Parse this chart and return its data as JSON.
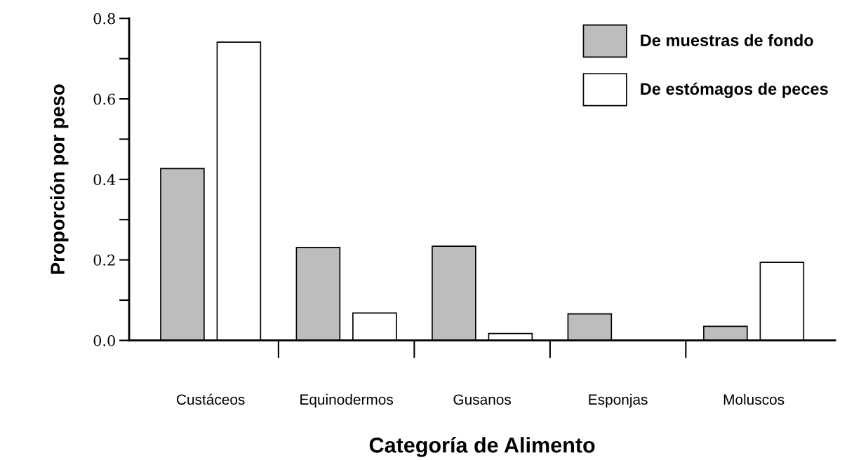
{
  "chart_data": {
    "type": "bar",
    "xlabel": "Categoría de Alimento",
    "ylabel": "Proporción por peso",
    "categories": [
      "Custáceos",
      "Equinodermos",
      "Gusanos",
      "Esponjas",
      "Moluscos"
    ],
    "series": [
      {
        "name": "De muestras de fondo",
        "color": "#bdbdbd",
        "values": [
          0.427,
          0.231,
          0.234,
          0.066,
          0.035
        ]
      },
      {
        "name": "De estómagos de peces",
        "color": "#ffffff",
        "values": [
          0.741,
          0.068,
          0.017,
          0.0,
          0.194
        ]
      }
    ],
    "ylim": [
      0,
      0.8
    ],
    "yticks": [
      {
        "value": 0,
        "label": "0.0"
      },
      {
        "value": 0.1,
        "label": null
      },
      {
        "value": 0.2,
        "label": "0.2"
      },
      {
        "value": 0.3,
        "label": null
      },
      {
        "value": 0.4,
        "label": "0.4"
      },
      {
        "value": 0.5,
        "label": null
      },
      {
        "value": 0.6,
        "label": "0.6"
      },
      {
        "value": 0.7,
        "label": null
      },
      {
        "value": 0.8,
        "label": "0.8"
      }
    ],
    "grid": false,
    "legend": "top right"
  }
}
